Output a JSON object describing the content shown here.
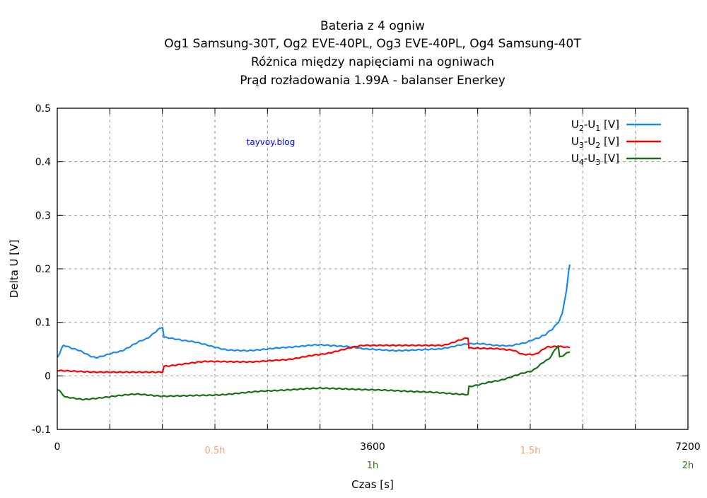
{
  "chart_data": {
    "type": "line",
    "title_lines": [
      "Bateria z 4 ogniw",
      "Og1 Samsung-30T,  Og2 EVE-40PL, Og3 EVE-40PL, Og4 Samsung-40T",
      "Różnica między napięciami na ogniwach",
      "Prąd rozładowania 1.99A - balanser Enerkey"
    ],
    "xlabel": "Czas [s]",
    "ylabel": "Delta U [V]",
    "xlim": [
      0,
      7200
    ],
    "ylim": [
      -0.1,
      0.5
    ],
    "grid": true,
    "x_ticks": [
      0,
      3600,
      7200
    ],
    "x_tick_labels": [
      "0",
      "3600",
      "7200"
    ],
    "hour_ticks": [
      {
        "x": 1800,
        "label": "0.5h",
        "color": "#f4a070",
        "row": 1
      },
      {
        "x": 3600,
        "label": "1h",
        "color": "#2e6b1e",
        "row": 2
      },
      {
        "x": 5400,
        "label": "1.5h",
        "color": "#f4a070",
        "row": 1
      },
      {
        "x": 7200,
        "label": "2h",
        "color": "#2e6b1e",
        "row": 2
      }
    ],
    "y_ticks": [
      -0.1,
      0,
      0.1,
      0.2,
      0.3,
      0.4,
      0.5
    ],
    "y_tick_labels": [
      "-0.1",
      "0",
      "0.1",
      "0.2",
      "0.3",
      "0.4",
      "0.5"
    ],
    "legend_position": "top-right",
    "annotation": "tayvoy.blog",
    "series": [
      {
        "name": "U2-U1 [V]",
        "name_parts": [
          "U",
          "2",
          "-U",
          "1",
          " [V]"
        ],
        "color": "#1e88f0",
        "x": [
          0,
          73,
          200,
          436,
          700,
          1000,
          1203,
          1219,
          1500,
          1969,
          2171,
          2600,
          2979,
          3300,
          3543,
          3866,
          4350,
          4697,
          4850,
          4996,
          5158,
          5319,
          5480,
          5561,
          5642,
          5722,
          5763,
          5803,
          5852
        ],
        "y": [
          0.035,
          0.057,
          0.05,
          0.034,
          0.045,
          0.068,
          0.091,
          0.072,
          0.065,
          0.048,
          0.047,
          0.053,
          0.058,
          0.055,
          0.05,
          0.047,
          0.05,
          0.06,
          0.06,
          0.057,
          0.056,
          0.061,
          0.07,
          0.076,
          0.086,
          0.1,
          0.115,
          0.15,
          0.208
        ]
      },
      {
        "name": "U3-U2 [V]",
        "name_parts": [
          "U",
          "3",
          "-U",
          "2",
          " [V]"
        ],
        "color": "#ff0000",
        "x": [
          0,
          436,
          1203,
          1219,
          1700,
          2200,
          2600,
          3000,
          3500,
          4000,
          4400,
          4690,
          4700,
          5000,
          5200,
          5320,
          5450,
          5600,
          5720,
          5852
        ],
        "y": [
          0.01,
          0.007,
          0.007,
          0.018,
          0.027,
          0.026,
          0.03,
          0.04,
          0.057,
          0.057,
          0.057,
          0.071,
          0.052,
          0.051,
          0.048,
          0.04,
          0.04,
          0.054,
          0.055,
          0.053
        ]
      },
      {
        "name": "U4-U3 [V]",
        "name_parts": [
          "U",
          "4",
          "-U",
          "3",
          " [V]"
        ],
        "color": "#1a6e1a",
        "x": [
          0,
          100,
          300,
          900,
          1200,
          1800,
          2400,
          3000,
          3600,
          4200,
          4690,
          4700,
          5000,
          5400,
          5600,
          5720,
          5735,
          5852
        ],
        "y": [
          -0.025,
          -0.04,
          -0.044,
          -0.034,
          -0.038,
          -0.036,
          -0.028,
          -0.023,
          -0.026,
          -0.03,
          -0.035,
          -0.02,
          -0.01,
          0.008,
          0.03,
          0.056,
          0.035,
          0.045
        ]
      }
    ]
  }
}
